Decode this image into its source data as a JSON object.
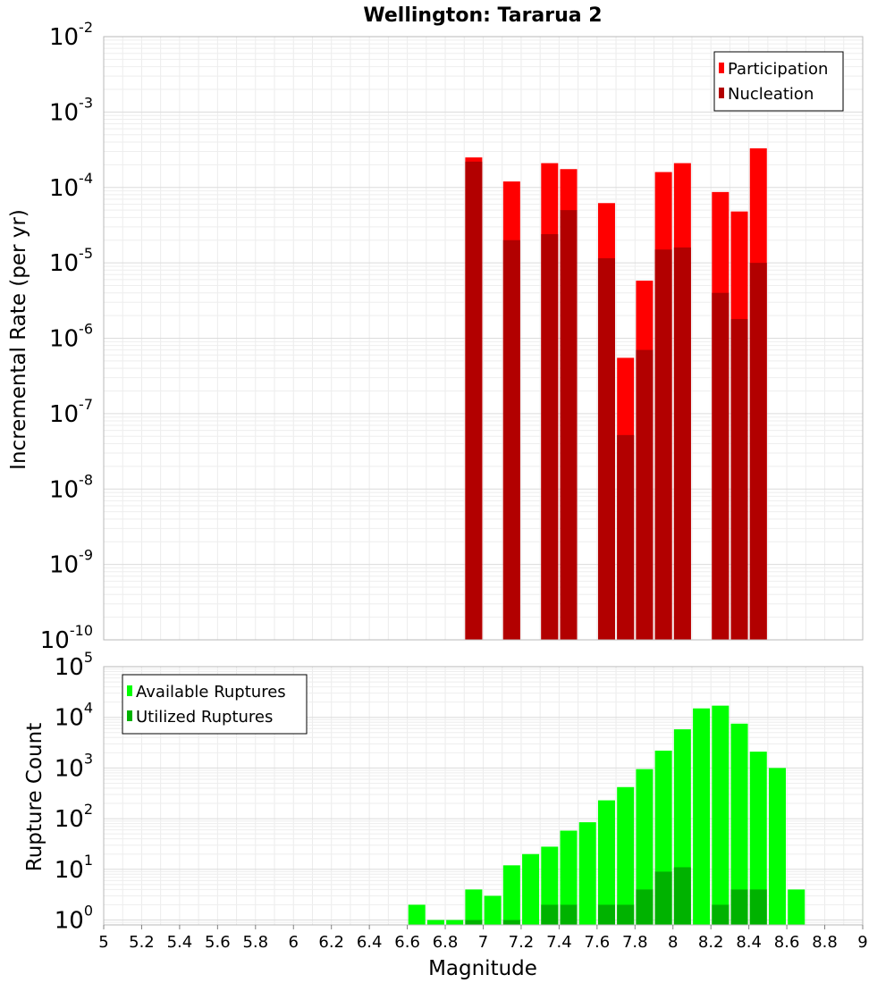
{
  "chart_data": [
    {
      "type": "bar",
      "title": "Wellington: Tararua 2",
      "xlabel": "Magnitude",
      "ylabel": "Incremental Rate (per yr)",
      "xlim": [
        5,
        9
      ],
      "ylim": [
        1e-10,
        0.01
      ],
      "yscale": "log",
      "grid": true,
      "legend_position": "top-right",
      "x_ticks": [
        "5",
        "5.2",
        "5.4",
        "5.6",
        "5.8",
        "6",
        "6.2",
        "6.4",
        "6.6",
        "6.8",
        "7",
        "7.2",
        "7.4",
        "7.6",
        "7.8",
        "8",
        "8.2",
        "8.4",
        "8.6",
        "8.8",
        "9"
      ],
      "y_ticks": [
        {
          "base": "10",
          "exp": "-10"
        },
        {
          "base": "10",
          "exp": "-9"
        },
        {
          "base": "10",
          "exp": "-8"
        },
        {
          "base": "10",
          "exp": "-7"
        },
        {
          "base": "10",
          "exp": "-6"
        },
        {
          "base": "10",
          "exp": "-5"
        },
        {
          "base": "10",
          "exp": "-4"
        },
        {
          "base": "10",
          "exp": "-3"
        },
        {
          "base": "10",
          "exp": "-2"
        }
      ],
      "series": [
        {
          "name": "Participation",
          "color": "#ff0000",
          "points": [
            [
              6.95,
              0.00025
            ],
            [
              7.15,
              0.00012
            ],
            [
              7.35,
              0.00021
            ],
            [
              7.45,
              0.000175
            ],
            [
              7.65,
              6.2e-05
            ],
            [
              7.75,
              5.5e-07
            ],
            [
              7.85,
              5.8e-06
            ],
            [
              7.95,
              0.00016
            ],
            [
              8.05,
              0.00021
            ],
            [
              8.25,
              8.7e-05
            ],
            [
              8.35,
              4.8e-05
            ],
            [
              8.45,
              0.00033
            ]
          ]
        },
        {
          "name": "Nucleation",
          "color": "#b20000",
          "points": [
            [
              6.95,
              0.00022
            ],
            [
              7.15,
              2e-05
            ],
            [
              7.35,
              2.4e-05
            ],
            [
              7.45,
              5e-05
            ],
            [
              7.65,
              1.15e-05
            ],
            [
              7.75,
              5.2e-08
            ],
            [
              7.85,
              7e-07
            ],
            [
              7.95,
              1.5e-05
            ],
            [
              8.05,
              1.6e-05
            ],
            [
              8.25,
              4e-06
            ],
            [
              8.35,
              1.8e-06
            ],
            [
              8.45,
              1e-05
            ]
          ]
        }
      ]
    },
    {
      "type": "bar",
      "xlabel": "Magnitude",
      "ylabel": "Rupture Count",
      "xlim": [
        5,
        9
      ],
      "ylim": [
        0.8,
        100000.0
      ],
      "yscale": "log",
      "grid": true,
      "legend_position": "top-left",
      "y_ticks": [
        {
          "base": "10",
          "exp": "0"
        },
        {
          "base": "10",
          "exp": "1"
        },
        {
          "base": "10",
          "exp": "2"
        },
        {
          "base": "10",
          "exp": "3"
        },
        {
          "base": "10",
          "exp": "4"
        },
        {
          "base": "10",
          "exp": "5"
        }
      ],
      "series": [
        {
          "name": "Available Ruptures",
          "color": "#00ff00",
          "points": [
            [
              6.65,
              2
            ],
            [
              6.75,
              1
            ],
            [
              6.85,
              1
            ],
            [
              6.95,
              4
            ],
            [
              7.05,
              3
            ],
            [
              7.15,
              12
            ],
            [
              7.25,
              20
            ],
            [
              7.35,
              28
            ],
            [
              7.45,
              58
            ],
            [
              7.55,
              85
            ],
            [
              7.65,
              230
            ],
            [
              7.75,
              420
            ],
            [
              7.85,
              950
            ],
            [
              7.95,
              2200
            ],
            [
              8.05,
              5800
            ],
            [
              8.15,
              15000
            ],
            [
              8.25,
              17000
            ],
            [
              8.35,
              7500
            ],
            [
              8.45,
              2100
            ],
            [
              8.55,
              1000
            ],
            [
              8.65,
              4
            ]
          ]
        },
        {
          "name": "Utilized Ruptures",
          "color": "#00b200",
          "points": [
            [
              6.95,
              1
            ],
            [
              7.15,
              1
            ],
            [
              7.35,
              2
            ],
            [
              7.45,
              2
            ],
            [
              7.65,
              2
            ],
            [
              7.75,
              2
            ],
            [
              7.85,
              4
            ],
            [
              7.95,
              9
            ],
            [
              8.05,
              11
            ],
            [
              8.25,
              2
            ],
            [
              8.35,
              4
            ],
            [
              8.45,
              4
            ]
          ]
        }
      ]
    }
  ]
}
